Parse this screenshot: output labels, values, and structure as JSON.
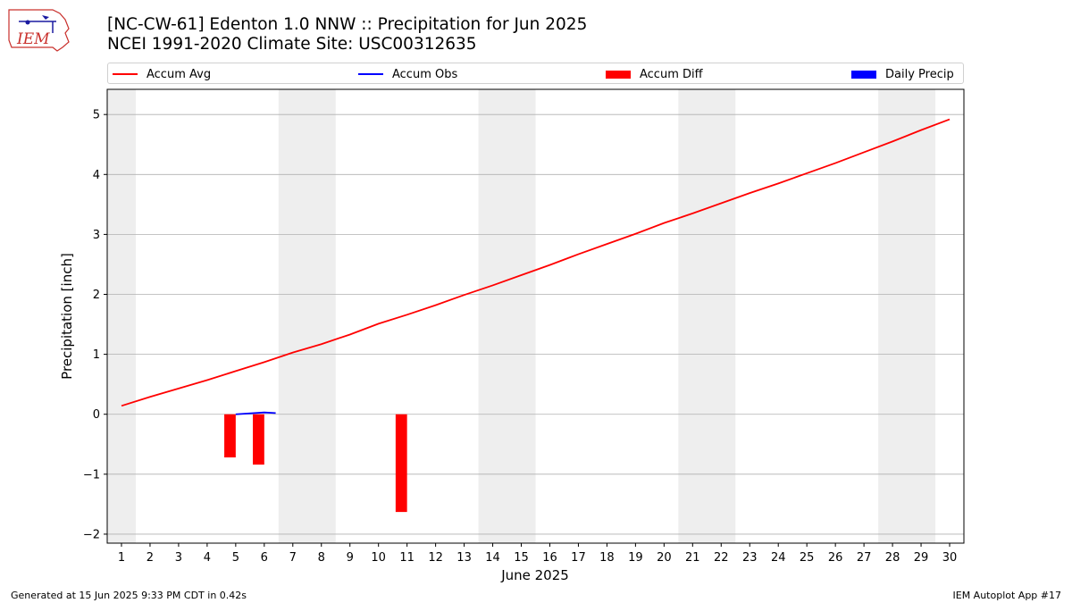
{
  "header": {
    "title_line1": "[NC-CW-61] Edenton 1.0 NNW :: Precipitation for Jun 2025",
    "title_line2": "NCEI 1991-2020 Climate Site: USC00312635",
    "logo_text": "IEM"
  },
  "footer": {
    "left": "Generated at 15 Jun 2025 9:33 PM CDT in 0.42s",
    "right": "IEM Autoplot App #17"
  },
  "colors": {
    "avg": "#ff0000",
    "obs": "#0000ff",
    "diff": "#ff0000",
    "daily": "#0000ff",
    "weekend_band": "#eeeeee",
    "grid": "#b0b0b0"
  },
  "chart_data": {
    "type": "line",
    "title": "[NC-CW-61] Edenton 1.0 NNW :: Precipitation for Jun 2025",
    "subtitle": "NCEI 1991-2020 Climate Site: USC00312635",
    "xlabel": "June 2025",
    "ylabel": "Precipitation [inch]",
    "xlim": [
      0.5,
      30.5
    ],
    "ylim": [
      -2.15,
      5.42
    ],
    "x_ticks": [
      1,
      2,
      3,
      4,
      5,
      6,
      7,
      8,
      9,
      10,
      11,
      12,
      13,
      14,
      15,
      16,
      17,
      18,
      19,
      20,
      21,
      22,
      23,
      24,
      25,
      26,
      27,
      28,
      29,
      30
    ],
    "y_ticks": [
      -2,
      -1,
      0,
      1,
      2,
      3,
      4,
      5
    ],
    "y_tick_labels": [
      "−2",
      "−1",
      "0",
      "1",
      "2",
      "3",
      "4",
      "5"
    ],
    "grid": "horizontal",
    "legend_position": "top",
    "weekend_bands": [
      [
        0.5,
        1.5
      ],
      [
        6.5,
        8.5
      ],
      [
        13.5,
        15.5
      ],
      [
        20.5,
        22.5
      ],
      [
        27.5,
        29.5
      ]
    ],
    "series": [
      {
        "name": "Accum Avg",
        "type": "line",
        "x": [
          1,
          2,
          3,
          4,
          5,
          6,
          7,
          8,
          9,
          10,
          11,
          12,
          13,
          14,
          15,
          16,
          17,
          18,
          19,
          20,
          21,
          22,
          23,
          24,
          25,
          26,
          27,
          28,
          29,
          30
        ],
        "values": [
          0.14,
          0.29,
          0.43,
          0.57,
          0.72,
          0.87,
          1.03,
          1.17,
          1.33,
          1.51,
          1.66,
          1.82,
          1.99,
          2.15,
          2.32,
          2.49,
          2.67,
          2.84,
          3.01,
          3.19,
          3.35,
          3.52,
          3.69,
          3.85,
          4.02,
          4.19,
          4.37,
          4.55,
          4.74,
          4.92
        ]
      },
      {
        "name": "Accum Obs",
        "type": "line",
        "x": [
          5,
          6,
          6.4
        ],
        "values": [
          0.0,
          0.03,
          0.02
        ]
      },
      {
        "name": "Accum Diff",
        "type": "bar",
        "x": [
          4.8,
          5.8,
          10.8
        ],
        "values": [
          -0.72,
          -0.84,
          -1.63
        ]
      },
      {
        "name": "Daily Precip",
        "type": "bar",
        "x": [],
        "values": []
      }
    ]
  }
}
